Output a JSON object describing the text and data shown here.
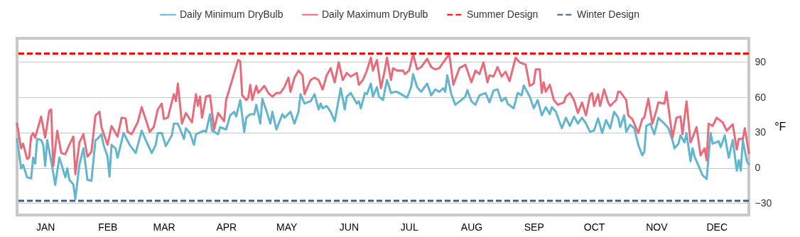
{
  "chart_data": {
    "type": "line",
    "ylabel": "°F",
    "xlim": [
      "--01-01",
      "--12-31"
    ],
    "ylim": [
      -40,
      110
    ],
    "yticks": [
      -30,
      0,
      30,
      60,
      90
    ],
    "xticks": [
      {
        "value": "--01-15",
        "label": "JAN"
      },
      {
        "value": "--02-15",
        "label": "FEB"
      },
      {
        "value": "--03-15",
        "label": "MAR"
      },
      {
        "value": "--04-15",
        "label": "APR"
      },
      {
        "value": "--05-15",
        "label": "MAY"
      },
      {
        "value": "--06-15",
        "label": "JUN"
      },
      {
        "value": "--07-15",
        "label": "JUL"
      },
      {
        "value": "--08-15",
        "label": "AUG"
      },
      {
        "value": "--09-15",
        "label": "SEP"
      },
      {
        "value": "--10-15",
        "label": "OCT"
      },
      {
        "value": "--11-15",
        "label": "NOV"
      },
      {
        "value": "--12-15",
        "label": "DEC"
      }
    ],
    "grid": "y",
    "legend": "top",
    "series": [
      {
        "name": "Daily Minimum DryBulb",
        "color": "#62b5cf",
        "x": [
          "--01-01",
          "--01-03",
          "--01-04",
          "--01-06",
          "--01-08",
          "--01-09",
          "--01-10",
          "--01-11",
          "--01-13",
          "--01-14",
          "--01-15",
          "--01-16",
          "--01-18",
          "--01-20",
          "--01-22",
          "--01-23",
          "--01-25",
          "--01-26",
          "--01-27",
          "--01-29",
          "--01-30",
          "--02-01",
          "--02-03",
          "--02-05",
          "--02-07",
          "--02-09",
          "--02-10",
          "--02-12",
          "--02-13",
          "--02-15",
          "--02-16",
          "--02-17",
          "--02-19",
          "--02-20",
          "--02-23",
          "--02-26",
          "--03-01",
          "--03-04",
          "--03-06",
          "--03-09",
          "--03-11",
          "--03-12",
          "--03-14",
          "--03-16",
          "--03-19",
          "--03-20",
          "--03-22",
          "--03-25",
          "--03-26",
          "--03-28",
          "--03-30",
          "--03-31",
          "--04-04",
          "--04-05",
          "--04-07",
          "--04-08",
          "--04-11",
          "--04-12",
          "--04-15",
          "--04-17",
          "--04-19",
          "--04-20",
          "--04-22",
          "--04-24",
          "--04-25",
          "--04-27",
          "--04-29",
          "--04-30",
          "--05-02",
          "--05-03",
          "--05-05",
          "--05-07",
          "--05-08",
          "--05-10",
          "--05-13",
          "--05-14",
          "--05-17",
          "--05-19",
          "--05-21",
          "--05-22",
          "--05-24",
          "--05-27",
          "--05-29",
          "--05-31",
          "--06-01",
          "--06-02",
          "--06-04",
          "--06-06",
          "--06-08",
          "--06-11",
          "--06-13",
          "--06-14",
          "--06-16",
          "--06-19",
          "--06-20",
          "--06-21",
          "--06-23",
          "--06-24",
          "--06-26",
          "--06-27",
          "--06-29",
          "--06-30",
          "--07-02",
          "--07-04",
          "--07-06",
          "--07-08",
          "--07-09",
          "--07-14",
          "--07-16",
          "--07-17",
          "--07-19",
          "--07-21",
          "--07-24",
          "--07-26",
          "--07-28",
          "--07-30",
          "--08-01",
          "--08-02",
          "--08-03",
          "--08-05",
          "--08-07",
          "--08-10",
          "--08-12",
          "--08-13",
          "--08-15",
          "--08-17",
          "--08-19",
          "--08-22",
          "--08-24",
          "--08-26",
          "--08-28",
          "--08-30",
          "--09-01",
          "--09-02",
          "--09-05",
          "--09-07",
          "--09-09",
          "--09-10",
          "--09-13",
          "--09-15",
          "--09-17",
          "--09-19",
          "--09-21",
          "--09-23",
          "--09-24",
          "--09-26",
          "--09-29",
          "--10-01",
          "--10-03",
          "--10-05",
          "--10-07",
          "--10-09",
          "--10-11",
          "--10-13",
          "--10-15",
          "--10-17",
          "--10-19",
          "--10-21",
          "--10-23",
          "--10-25",
          "--10-27",
          "--10-28",
          "--10-30",
          "--10-31",
          "--11-02",
          "--11-04",
          "--11-06",
          "--11-08",
          "--11-09",
          "--11-10",
          "--11-12",
          "--11-14",
          "--11-16",
          "--11-17",
          "--11-19",
          "--11-21",
          "--11-23",
          "--11-24",
          "--11-26",
          "--11-27",
          "--11-29",
          "--11-30",
          "--12-02",
          "--12-03",
          "--12-04",
          "--12-06",
          "--12-08",
          "--12-10",
          "--12-12",
          "--12-13",
          "--12-16",
          "--12-17",
          "--12-19",
          "--12-21",
          "--12-23",
          "--12-25",
          "--12-26",
          "--12-27",
          "--12-28",
          "--12-30",
          "--12-31"
        ],
        "values": [
          24.6,
          -0.4,
          2.6,
          -8,
          -9,
          8.6,
          3.6,
          24.6,
          23.6,
          19.6,
          1.6,
          23.6,
          5.6,
          -14.4,
          8.6,
          3.6,
          -8,
          -0.4,
          -10,
          -14,
          -26.4,
          2.6,
          16.6,
          -10,
          -11,
          23.6,
          24.6,
          28.6,
          19.6,
          9.6,
          -7.4,
          19.6,
          16.6,
          8.6,
          29.6,
          19.6,
          12.6,
          31.6,
          23.6,
          12.6,
          19.6,
          29.6,
          29.6,
          18.6,
          27.6,
          37.6,
          37.6,
          24.6,
          33.6,
          29.6,
          19.6,
          28.6,
          31.6,
          30.6,
          45.6,
          31.6,
          28.6,
          34.6,
          32.6,
          44.6,
          47.6,
          43.6,
          57.6,
          30.6,
          42.6,
          45.6,
          45.6,
          53.6,
          37.6,
          58.6,
          48.6,
          37.6,
          47.6,
          32.6,
          45.6,
          42.6,
          47.6,
          37.6,
          47.6,
          62.6,
          54.6,
          56.6,
          62.6,
          49.6,
          54.6,
          50.6,
          52.6,
          47.6,
          39.6,
          67.6,
          49.6,
          60.6,
          63.6,
          54.6,
          56.6,
          50.6,
          63.6,
          62.6,
          71.6,
          60.6,
          68.6,
          60.6,
          57.6,
          74.6,
          63.6,
          64.6,
          64.6,
          59.6,
          68.6,
          79.6,
          68.6,
          64.6,
          71.6,
          61.6,
          66.6,
          64.6,
          67.6,
          64.6,
          78.6,
          62.6,
          53.6,
          57.6,
          60.6,
          66,
          56.6,
          53.6,
          61.6,
          63.6,
          55.6,
          65.6,
          66.6,
          56.6,
          59.6,
          54.6,
          50.6,
          63.6,
          61.6,
          70,
          60.6,
          50.6,
          57.6,
          44.6,
          51.6,
          45.6,
          51.6,
          47.6,
          33.6,
          42.6,
          35.6,
          43.6,
          37.6,
          42.6,
          37.6,
          30.6,
          31.6,
          42,
          29.6,
          40.6,
          33.6,
          47.6,
          42.6,
          34.6,
          44.6,
          30.6,
          36.6,
          33.6,
          19.6,
          10.6,
          13.6,
          35.6,
          37.6,
          28.6,
          42.6,
          40.6,
          37.6,
          33.6,
          23.6,
          16.6,
          20.6,
          27.6,
          21.6,
          29.6,
          5.6,
          16.6,
          9.6,
          1.6,
          -6.4,
          -9.4,
          29.6,
          20.6,
          22.6,
          17.6,
          27.6,
          8.6,
          23.6,
          -2.4,
          6.6,
          -2.4,
          23.6,
          5.6,
          3.2
        ]
      },
      {
        "name": "Daily Maximum DryBulb",
        "color": "#e76b7b",
        "x": [
          "--01-01",
          "--01-03",
          "--01-04",
          "--01-06",
          "--01-07",
          "--01-08",
          "--01-09",
          "--01-10",
          "--01-13",
          "--01-15",
          "--01-17",
          "--01-18",
          "--01-19",
          "--01-21",
          "--01-23",
          "--01-25",
          "--01-27",
          "--01-29",
          "--01-30",
          "--02-01",
          "--02-03",
          "--02-05",
          "--02-07",
          "--02-09",
          "--02-11",
          "--02-12",
          "--02-15",
          "--02-17",
          "--02-20",
          "--02-22",
          "--02-24",
          "--02-25",
          "--02-27",
          "--03-02",
          "--03-04",
          "--03-08",
          "--03-10",
          "--03-12",
          "--03-14",
          "--03-15",
          "--03-17",
          "--03-20",
          "--03-21",
          "--03-22",
          "--03-24",
          "--03-26",
          "--03-29",
          "--03-31",
          "--04-01",
          "--04-02",
          "--04-03",
          "--04-05",
          "--04-07",
          "--04-09",
          "--04-11",
          "--04-14",
          "--04-15",
          "--04-18",
          "--04-19",
          "--04-21",
          "--04-22",
          "--04-23",
          "--04-25",
          "--04-26",
          "--04-27",
          "--04-28",
          "--04-30",
          "--05-01",
          "--05-04",
          "--05-06",
          "--05-08",
          "--05-10",
          "--05-12",
          "--05-14",
          "--05-16",
          "--05-17",
          "--05-19",
          "--05-21",
          "--05-23",
          "--05-24",
          "--05-27",
          "--05-29",
          "--05-31",
          "--06-02",
          "--06-04",
          "--06-06",
          "--06-08",
          "--06-10",
          "--06-12",
          "--06-14",
          "--06-16",
          "--06-19",
          "--06-20",
          "--06-22",
          "--06-24",
          "--06-26",
          "--06-27",
          "--06-29",
          "--07-01",
          "--07-03",
          "--07-04",
          "--07-06",
          "--07-07",
          "--07-09",
          "--07-12",
          "--07-13",
          "--07-15",
          "--07-17",
          "--07-19",
          "--07-21",
          "--07-24",
          "--07-26",
          "--07-28",
          "--07-30",
          "--08-01",
          "--08-04",
          "--08-06",
          "--08-09",
          "--08-12",
          "--08-14",
          "--08-15",
          "--08-17",
          "--08-19",
          "--08-21",
          "--08-23",
          "--08-24",
          "--08-26",
          "--08-28",
          "--08-30",
          "--09-01",
          "--09-03",
          "--09-06",
          "--09-08",
          "--09-11",
          "--09-13",
          "--09-15",
          "--09-16",
          "--09-18",
          "--09-19",
          "--09-20",
          "--09-21",
          "--09-23",
          "--09-25",
          "--09-27",
          "--09-30",
          "--10-01",
          "--10-03",
          "--10-05",
          "--10-07",
          "--10-09",
          "--10-11",
          "--10-13",
          "--10-14",
          "--10-15",
          "--10-17",
          "--10-18",
          "--10-20",
          "--10-22",
          "--10-23",
          "--10-26",
          "--10-27",
          "--10-28",
          "--10-31",
          "--11-01",
          "--11-03",
          "--11-04",
          "--11-06",
          "--11-08",
          "--11-09",
          "--11-11",
          "--11-13",
          "--11-15",
          "--11-16",
          "--11-19",
          "--11-20",
          "--11-22",
          "--11-23",
          "--11-25",
          "--11-27",
          "--11-28",
          "--11-30",
          "--12-02",
          "--12-03",
          "--12-05",
          "--12-07",
          "--12-09",
          "--12-10",
          "--12-11",
          "--12-13",
          "--12-15",
          "--12-18",
          "--12-20",
          "--12-23",
          "--12-25",
          "--12-26",
          "--12-28",
          "--12-29",
          "--12-31"
        ],
        "values": [
          37.6,
          16.6,
          20.6,
          7.6,
          8.6,
          26.6,
          29.6,
          25.6,
          43.6,
          25.6,
          48.6,
          49.6,
          1.6,
          31.6,
          12.6,
          11.6,
          19.6,
          26.6,
          -5.4,
          21.6,
          28.6,
          9.6,
          13.6,
          44.6,
          47.6,
          34.6,
          19.6,
          35.6,
          26.6,
          42.6,
          42,
          30.6,
          28.6,
          38.6,
          51.6,
          30.6,
          34.6,
          49.6,
          54.6,
          41.6,
          42.6,
          62.6,
          56.6,
          71.6,
          37.6,
          46.6,
          38.6,
          62.6,
          52.6,
          60.6,
          42.6,
          60.6,
          61.6,
          32.6,
          46.6,
          39.6,
          57.6,
          74.6,
          80.6,
          91.6,
          90.6,
          61.6,
          57.6,
          59.6,
          70.6,
          57.6,
          69.6,
          63.6,
          69.6,
          63.6,
          60.6,
          63.6,
          63.6,
          68.6,
          76.6,
          64.6,
          76.6,
          82.6,
          78.6,
          62.6,
          74.6,
          76.6,
          74.6,
          66.6,
          78.6,
          84.6,
          72.6,
          89.6,
          74.6,
          80.6,
          77.6,
          80.6,
          70.6,
          74.6,
          82.6,
          93.6,
          82.6,
          91.6,
          67.6,
          83.6,
          93.6,
          74.6,
          84.6,
          82.6,
          82.6,
          79.6,
          82.6,
          96.6,
          83.6,
          85.6,
          92.6,
          85.6,
          83.6,
          84.6,
          89.6,
          96.6,
          70.6,
          84.6,
          87.6,
          77.6,
          72.6,
          82.6,
          79.6,
          89.6,
          72.6,
          78.6,
          77.6,
          85.6,
          77.6,
          81.6,
          73.6,
          93.6,
          89.6,
          87.6,
          69.6,
          71.6,
          83.6,
          83.6,
          63.6,
          72.6,
          64.6,
          70.6,
          57.6,
          53.6,
          55.6,
          60.6,
          63.6,
          57.6,
          46.6,
          55.6,
          44.6,
          61.6,
          63.6,
          52.6,
          62.6,
          52.6,
          66.6,
          55.6,
          52.6,
          57.6,
          64.6,
          64.6,
          57.6,
          44.6,
          41.6,
          37.6,
          29.6,
          41.6,
          42.6,
          58.6,
          37.6,
          48.6,
          55.6,
          54.6,
          64.6,
          38.6,
          25.6,
          42.6,
          43.6,
          28.6,
          56.6,
          21.6,
          25.6,
          34.6,
          10.6,
          16.6,
          6.6,
          37.6,
          35.6,
          42.6,
          38.6,
          31.6,
          37,
          15.6,
          24.6,
          24.6,
          33.6,
          12.6
        ]
      }
    ],
    "ref_lines": [
      {
        "axis": "y",
        "value": 97,
        "label": "Summer Design",
        "color": "#ff0000",
        "line_style": "dashed"
      },
      {
        "axis": "y",
        "value": -28,
        "label": "Winter Design",
        "color": "#3b6290",
        "line_style": "dashed"
      }
    ]
  }
}
